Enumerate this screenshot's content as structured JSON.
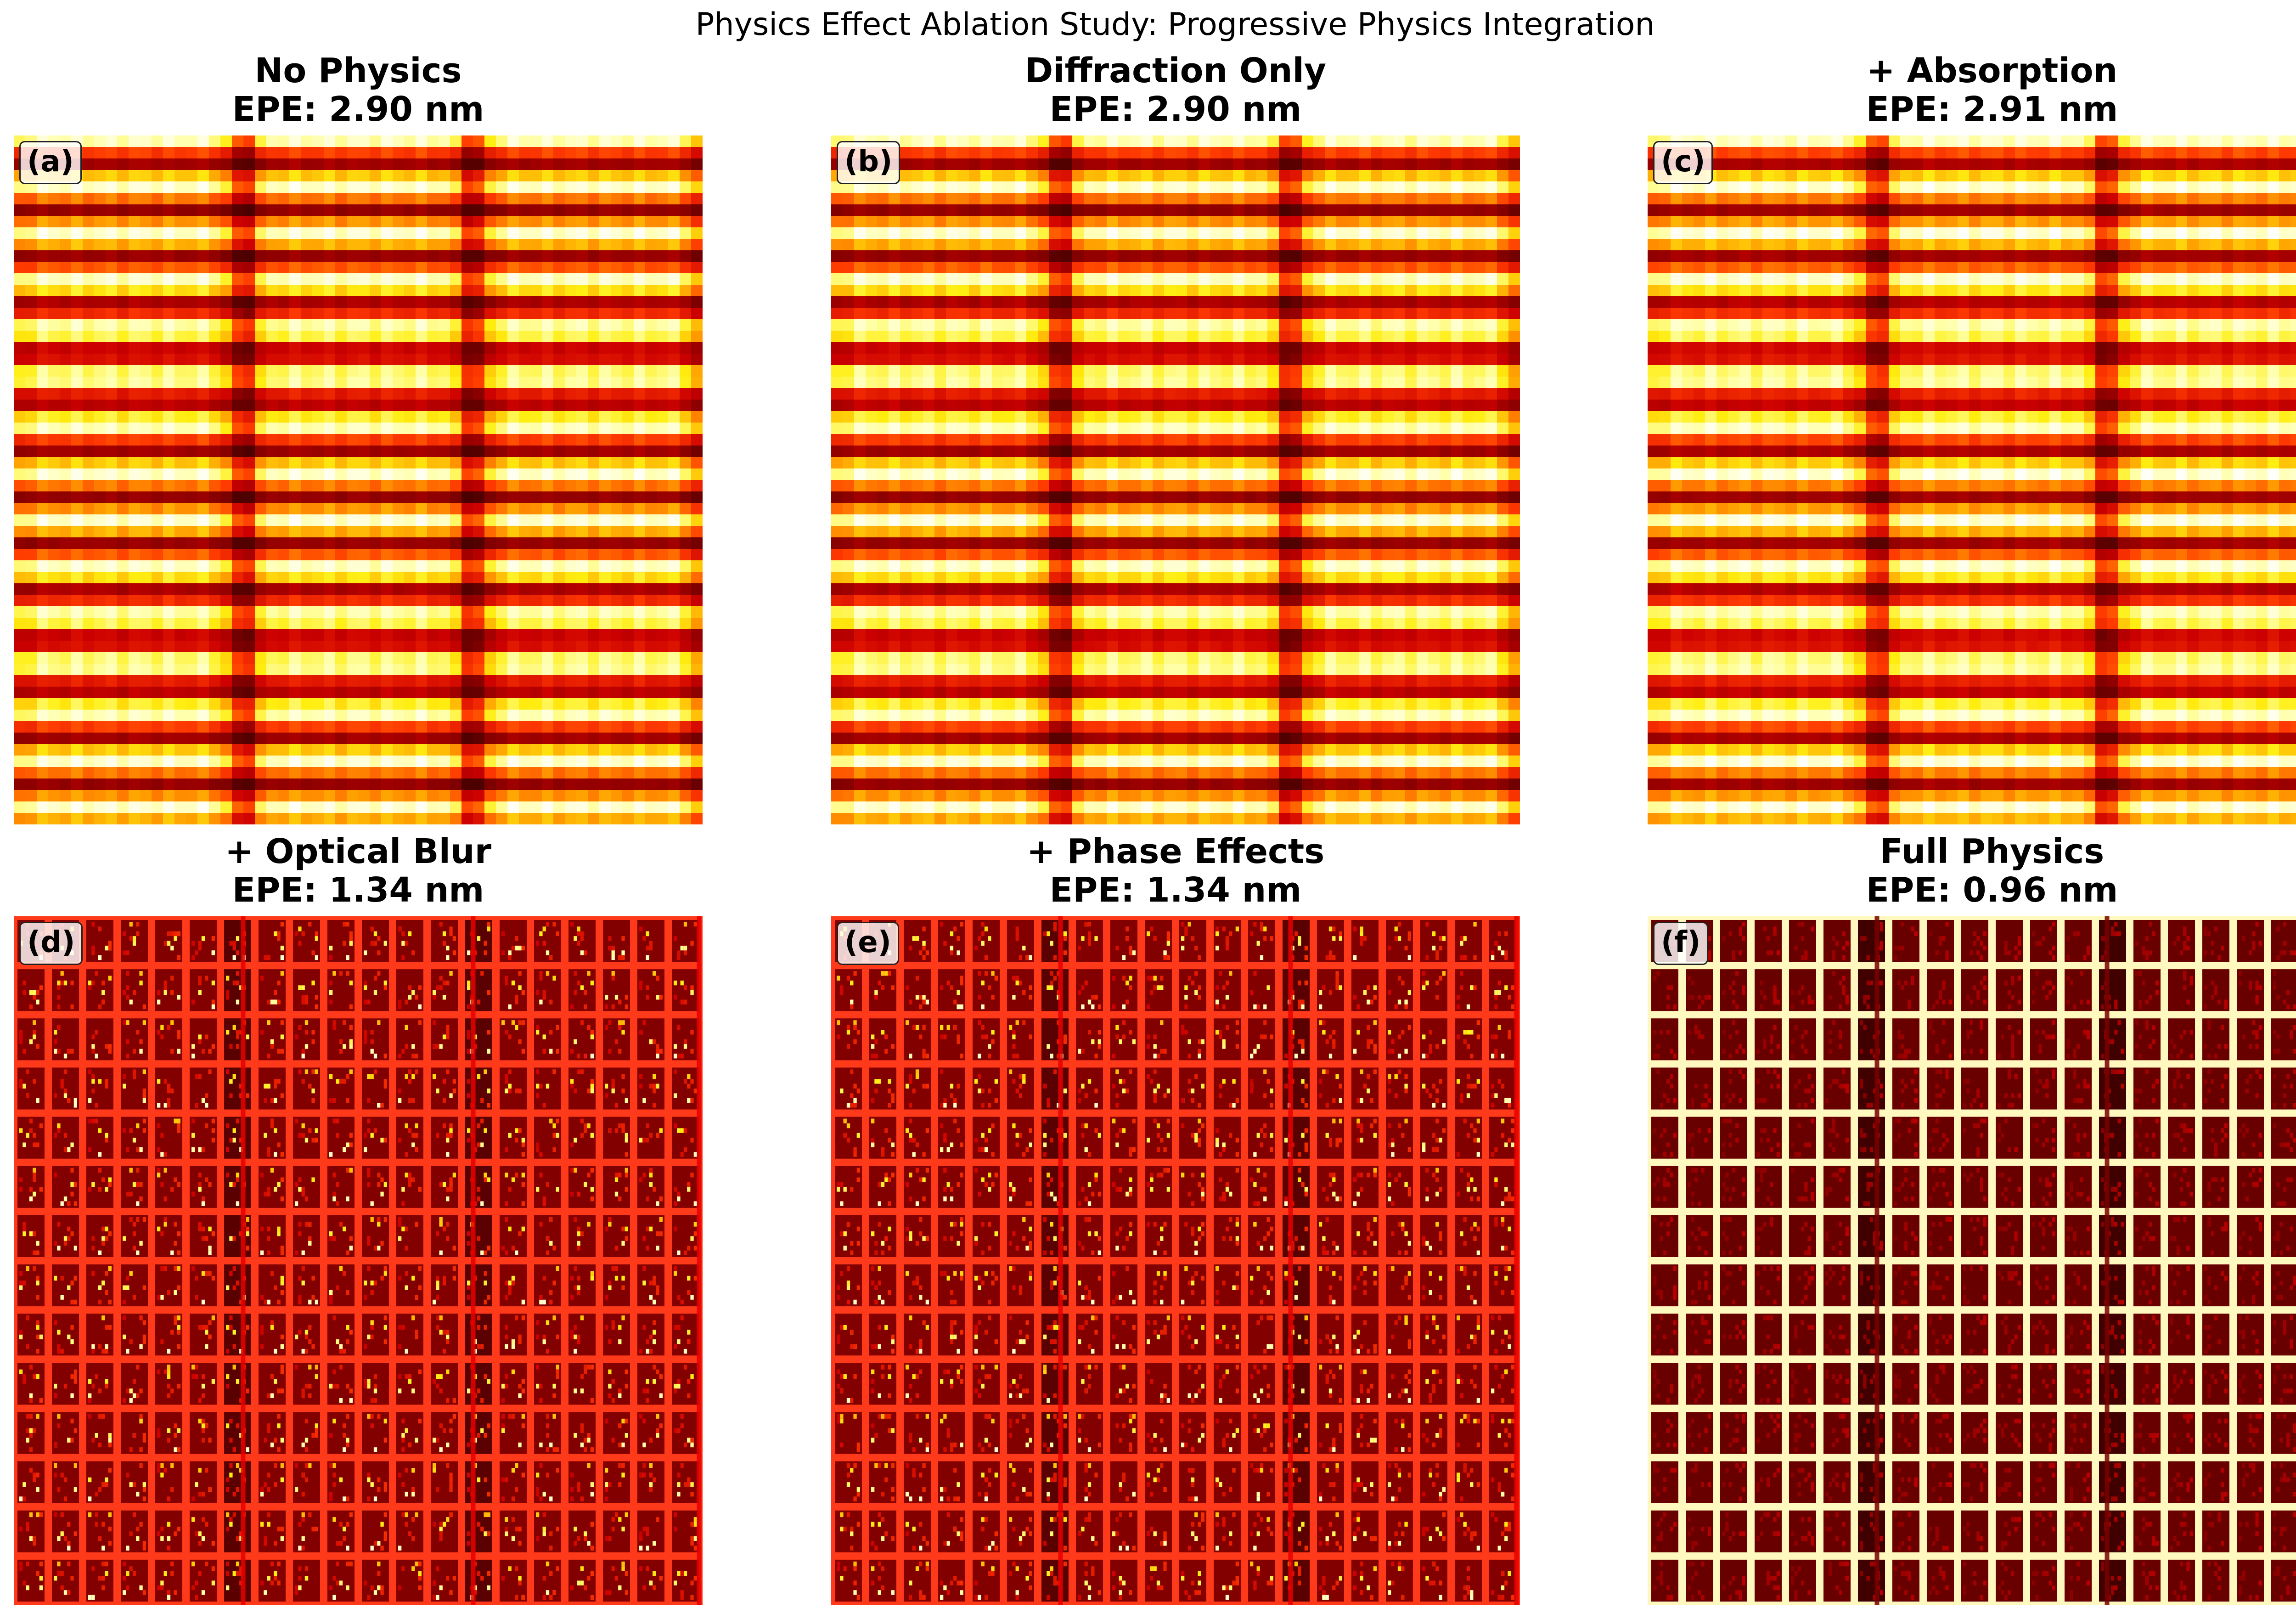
{
  "figure": {
    "suptitle": "Physics Effect Ablation Study: Progressive Physics Integration"
  },
  "colormap": {
    "name": "hot",
    "stops": [
      "#0b0000",
      "#6a0000",
      "#cc0000",
      "#ff3a00",
      "#ff9a00",
      "#ffee10",
      "#ffffa8",
      "#ffffff"
    ]
  },
  "chart_data": [
    {
      "type": "heatmap",
      "label": "(a)",
      "title": "No Physics",
      "epe": "EPE: 2.90 nm",
      "epe_nm": 2.9,
      "style": "blurred"
    },
    {
      "type": "heatmap",
      "label": "(b)",
      "title": "Diffraction Only",
      "epe": "EPE: 2.90 nm",
      "epe_nm": 2.9,
      "style": "blurred"
    },
    {
      "type": "heatmap",
      "label": "(c)",
      "title": "+ Absorption",
      "epe": "EPE: 2.91 nm",
      "epe_nm": 2.91,
      "style": "blurred"
    },
    {
      "type": "heatmap",
      "label": "(d)",
      "title": "+ Optical Blur",
      "epe": "EPE: 1.34 nm",
      "epe_nm": 1.34,
      "style": "grid"
    },
    {
      "type": "heatmap",
      "label": "(e)",
      "title": "+ Phase Effects",
      "epe": "EPE: 1.34 nm",
      "epe_nm": 1.34,
      "style": "grid"
    },
    {
      "type": "heatmap",
      "label": "(f)",
      "title": "Full Physics",
      "epe": "EPE: 0.96 nm",
      "epe_nm": 0.96,
      "style": "grid-full"
    }
  ]
}
